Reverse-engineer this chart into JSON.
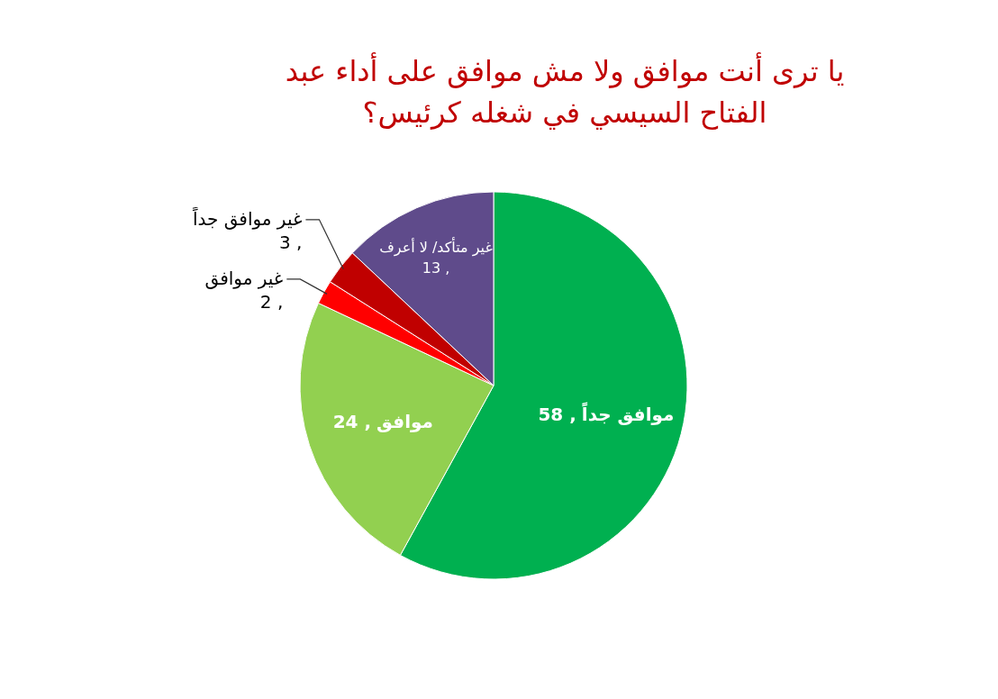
{
  "chart_data": {
    "type": "pie",
    "title": "يا ترى أنت موافق ولا مش موافق على أداء عبد الفتاح السيسي في شغله كرئيس؟",
    "categories": [
      "موافق جداً",
      "موافق",
      "غير موافق",
      "غير موافق جداً",
      "غير متأكد/ لا أعرف"
    ],
    "values": [
      58,
      24,
      2,
      3,
      13
    ],
    "value_labels": [
      ", 58",
      ", 24",
      ", 2",
      ", 3",
      ", 13"
    ],
    "colors": [
      "#00b050",
      "#92d050",
      "#ff0000",
      "#c00000",
      "#5f4b8b"
    ]
  }
}
